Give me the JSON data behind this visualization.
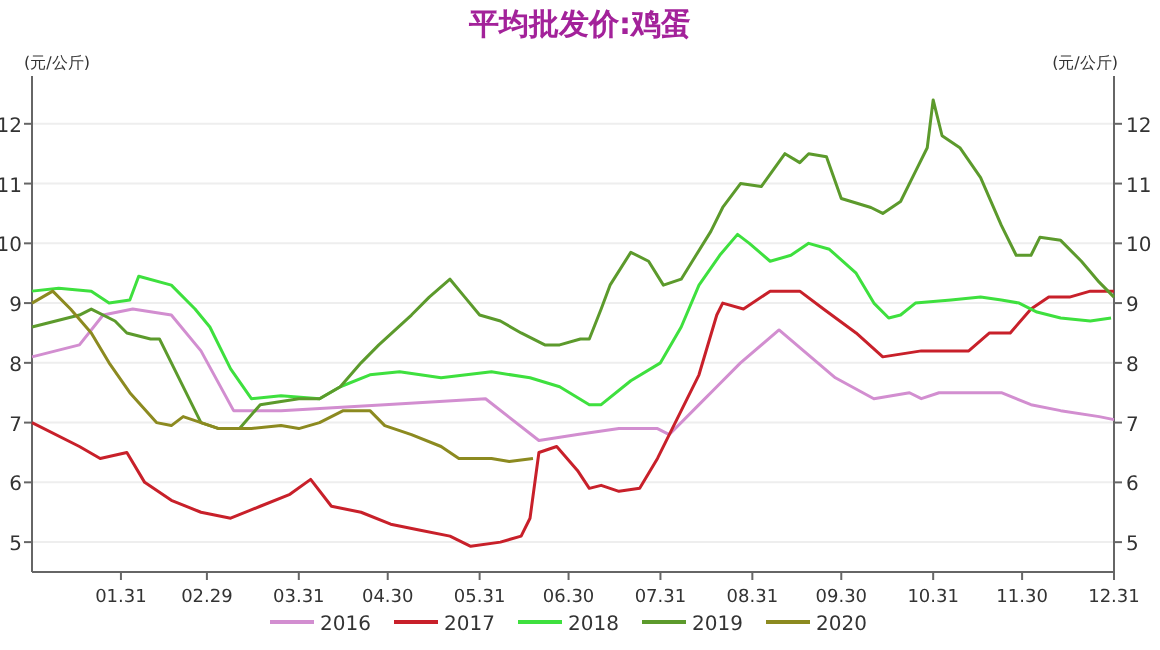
{
  "chart_data": {
    "type": "line",
    "title": "平均批发价:鸡蛋",
    "ylabel": "(元/公斤)",
    "y2label": "(元/公斤)",
    "xlim": [
      "--01-01",
      "--12-31"
    ],
    "xticks": [
      {
        "value": "--01-31",
        "label": "01.31"
      },
      {
        "value": "--02-29",
        "label": "02.29"
      },
      {
        "value": "--03-31",
        "label": "03.31"
      },
      {
        "value": "--04-30",
        "label": "04.30"
      },
      {
        "value": "--05-31",
        "label": "05.31"
      },
      {
        "value": "--06-30",
        "label": "06.30"
      },
      {
        "value": "--07-31",
        "label": "07.31"
      },
      {
        "value": "--08-31",
        "label": "08.31"
      },
      {
        "value": "--09-30",
        "label": "09.30"
      },
      {
        "value": "--10-31",
        "label": "10.31"
      },
      {
        "value": "--11-30",
        "label": "11.30"
      },
      {
        "value": "--12-31",
        "label": "12.31"
      }
    ],
    "ylim": [
      4.5,
      12.8
    ],
    "yticks": [
      5,
      6,
      7,
      8,
      9,
      10,
      11,
      12
    ],
    "y2lim": [
      4.5,
      12.8
    ],
    "y2ticks": [
      5,
      6,
      7,
      8,
      9,
      10,
      11,
      12
    ],
    "grid": "y",
    "legend": "bottom",
    "line_style": "solid",
    "series": [
      {
        "name": "2016",
        "color": "#d28ed0",
        "x": [
          "--01-01",
          "--01-17",
          "--01-25",
          "--02-04",
          "--02-17",
          "--02-27",
          "--03-09",
          "--03-25",
          "--04-29",
          "--06-02",
          "--06-20",
          "--07-03",
          "--07-17",
          "--07-30",
          "--08-03",
          "--08-13",
          "--08-19",
          "--08-27",
          "--09-09",
          "--09-28",
          "--10-11",
          "--10-23",
          "--10-27",
          "--11-02",
          "--11-23",
          "--12-03",
          "--12-13",
          "--12-26",
          "--12-31"
        ],
        "values": [
          8.1,
          8.3,
          8.8,
          8.9,
          8.8,
          8.2,
          7.2,
          7.2,
          7.3,
          7.4,
          6.7,
          6.8,
          6.9,
          6.9,
          6.8,
          7.3,
          7.6,
          8.0,
          8.55,
          7.75,
          7.4,
          7.5,
          7.4,
          7.5,
          7.5,
          7.3,
          7.2,
          7.1,
          7.05
        ]
      },
      {
        "name": "2017",
        "color": "#c8202a",
        "x": [
          "--01-01",
          "--01-17",
          "--01-24",
          "--02-02",
          "--02-08",
          "--02-17",
          "--02-27",
          "--03-08",
          "--03-18",
          "--03-28",
          "--04-04",
          "--04-11",
          "--04-21",
          "--05-01",
          "--05-11",
          "--05-21",
          "--05-28",
          "--06-07",
          "--06-14",
          "--06-17",
          "--06-20",
          "--06-26",
          "--07-03",
          "--07-07",
          "--07-11",
          "--07-17",
          "--07-24",
          "--07-30",
          "--08-05",
          "--08-13",
          "--08-19",
          "--08-21",
          "--08-28",
          "--09-06",
          "--09-16",
          "--09-24",
          "--10-05",
          "--10-14",
          "--10-27",
          "--11-09",
          "--11-12",
          "--11-19",
          "--11-26",
          "--12-03",
          "--12-09",
          "--12-16",
          "--12-23",
          "--12-31"
        ],
        "values": [
          7.0,
          6.6,
          6.4,
          6.5,
          6.0,
          5.7,
          5.5,
          5.4,
          5.6,
          5.8,
          6.05,
          5.6,
          5.5,
          5.3,
          5.2,
          5.1,
          4.93,
          5.0,
          5.1,
          5.4,
          6.5,
          6.6,
          6.2,
          5.9,
          5.95,
          5.85,
          5.9,
          6.4,
          7.0,
          7.8,
          8.8,
          9.0,
          8.9,
          9.2,
          9.2,
          8.9,
          8.5,
          8.1,
          8.2,
          8.2,
          8.2,
          8.5,
          8.5,
          8.9,
          9.1,
          9.1,
          9.2,
          9.2
        ]
      },
      {
        "name": "2018",
        "color": "#3ee03e",
        "x": [
          "--01-01",
          "--01-10",
          "--01-21",
          "--01-27",
          "--02-03",
          "--02-06",
          "--02-17",
          "--02-25",
          "--03-01",
          "--03-08",
          "--03-15",
          "--03-25",
          "--04-07",
          "--04-14",
          "--04-24",
          "--05-04",
          "--05-18",
          "--06-04",
          "--06-17",
          "--06-27",
          "--07-07",
          "--07-11",
          "--07-21",
          "--07-31",
          "--08-07",
          "--08-13",
          "--08-20",
          "--08-26",
          "--08-30",
          "--09-06",
          "--09-13",
          "--09-19",
          "--09-26",
          "--10-05",
          "--10-11",
          "--10-16",
          "--10-20",
          "--10-25",
          "--11-06",
          "--11-16",
          "--11-23",
          "--11-29",
          "--12-05",
          "--12-13",
          "--12-23",
          "--12-30"
        ],
        "values": [
          9.2,
          9.25,
          9.2,
          9.0,
          9.05,
          9.45,
          9.3,
          8.9,
          8.6,
          7.9,
          7.4,
          7.45,
          7.4,
          7.6,
          7.8,
          7.85,
          7.75,
          7.85,
          7.75,
          7.6,
          7.3,
          7.3,
          7.7,
          8.0,
          8.6,
          9.3,
          9.8,
          10.15,
          10.0,
          9.7,
          9.8,
          10.0,
          9.9,
          9.5,
          9.0,
          8.75,
          8.8,
          9.0,
          9.05,
          9.1,
          9.05,
          9.0,
          8.85,
          8.75,
          8.7,
          8.75
        ]
      },
      {
        "name": "2019",
        "color": "#5c9a2c",
        "x": [
          "--01-01",
          "--01-17",
          "--01-21",
          "--01-29",
          "--02-02",
          "--02-10",
          "--02-13",
          "--02-27",
          "--03-04",
          "--03-11",
          "--03-18",
          "--03-31",
          "--04-07",
          "--04-14",
          "--04-21",
          "--04-27",
          "--05-08",
          "--05-14",
          "--05-21",
          "--05-26",
          "--05-31",
          "--06-07",
          "--06-14",
          "--06-22",
          "--06-27",
          "--07-04",
          "--07-07",
          "--07-11",
          "--07-14",
          "--07-21",
          "--07-27",
          "--08-01",
          "--08-07",
          "--08-12",
          "--08-17",
          "--08-21",
          "--08-27",
          "--09-03",
          "--09-11",
          "--09-16",
          "--09-19",
          "--09-25",
          "--09-30",
          "--10-10",
          "--10-14",
          "--10-20",
          "--10-25",
          "--10-29",
          "--10-31",
          "--11-03",
          "--11-09",
          "--11-16",
          "--11-23",
          "--11-28",
          "--12-03",
          "--12-06",
          "--12-13",
          "--12-20",
          "--12-26",
          "--12-31"
        ],
        "values": [
          8.6,
          8.8,
          8.9,
          8.7,
          8.5,
          8.4,
          8.4,
          7.0,
          6.9,
          6.9,
          7.3,
          7.4,
          7.4,
          7.6,
          8.0,
          8.3,
          8.8,
          9.1,
          9.4,
          9.1,
          8.8,
          8.7,
          8.5,
          8.3,
          8.3,
          8.4,
          8.4,
          8.9,
          9.3,
          9.85,
          9.7,
          9.3,
          9.4,
          9.8,
          10.2,
          10.6,
          11.0,
          10.95,
          11.5,
          11.35,
          11.5,
          11.45,
          10.75,
          10.6,
          10.5,
          10.7,
          11.2,
          11.6,
          12.4,
          11.8,
          11.6,
          11.1,
          10.3,
          9.8,
          9.8,
          10.1,
          10.05,
          9.7,
          9.35,
          9.1
        ]
      },
      {
        "name": "2020",
        "color": "#8c8a20",
        "x": [
          "--01-01",
          "--01-08",
          "--01-14",
          "--01-21",
          "--01-27",
          "--02-03",
          "--02-12",
          "--02-17",
          "--02-21",
          "--02-27",
          "--03-04",
          "--03-15",
          "--03-25",
          "--03-31",
          "--04-07",
          "--04-15",
          "--04-24",
          "--04-29",
          "--05-08",
          "--05-18",
          "--05-24",
          "--06-04",
          "--06-10",
          "--06-18"
        ],
        "values": [
          9.0,
          9.2,
          8.9,
          8.5,
          8.0,
          7.5,
          7.0,
          6.95,
          7.1,
          7.0,
          6.9,
          6.9,
          6.95,
          6.9,
          7.0,
          7.2,
          7.2,
          6.95,
          6.8,
          6.6,
          6.4,
          6.4,
          6.35,
          6.4
        ]
      }
    ]
  }
}
